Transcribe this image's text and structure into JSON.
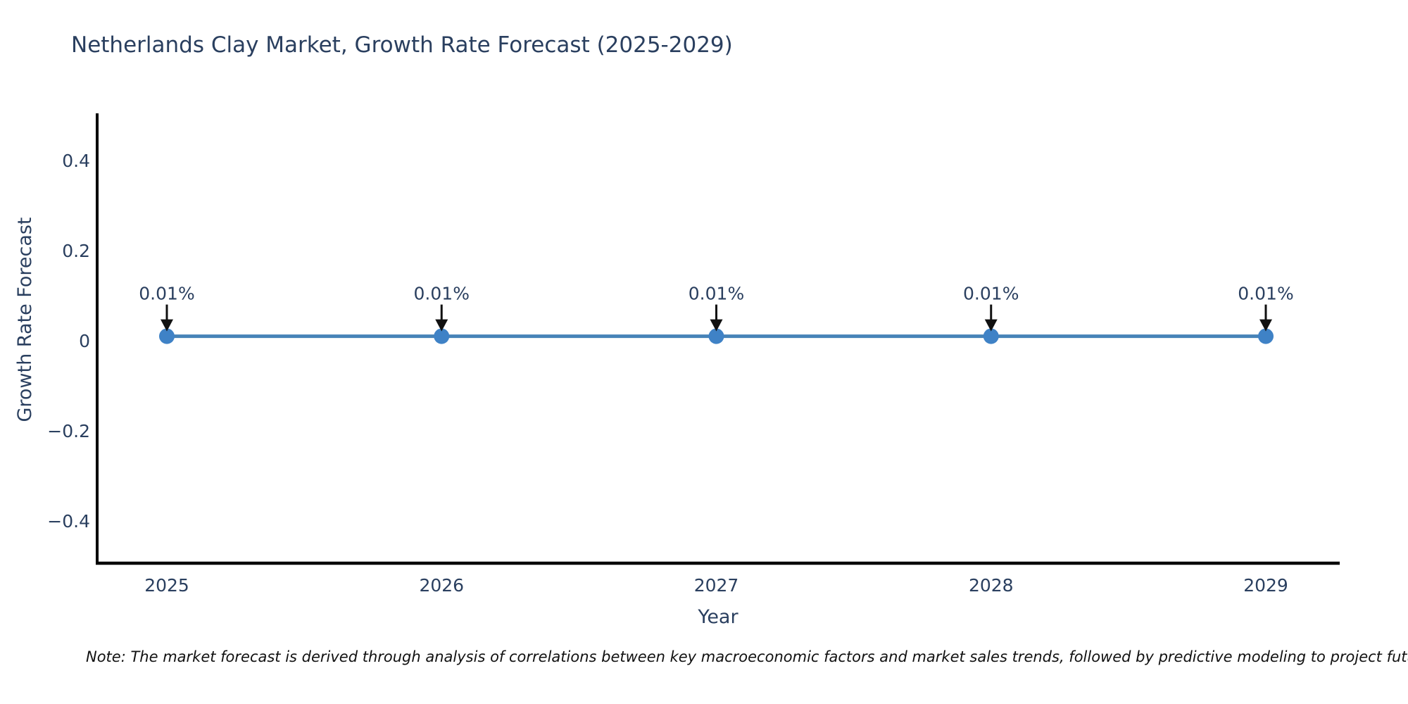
{
  "note": "Note: The market forecast is derived through analysis of correlations between key macroeconomic factors and market sales trends, followed by predictive modeling to project future sa",
  "chart_data": {
    "type": "line",
    "title": "Netherlands Clay Market, Growth Rate Forecast (2025-2029)",
    "xlabel": "Year",
    "ylabel": "Growth Rate Forecast",
    "x": [
      2025,
      2026,
      2027,
      2028,
      2029
    ],
    "series": [
      {
        "name": "Growth Rate Forecast",
        "values": [
          0.01,
          0.01,
          0.01,
          0.01,
          0.01
        ]
      }
    ],
    "point_labels": [
      "0.01%",
      "0.01%",
      "0.01%",
      "0.01%",
      "0.01%"
    ],
    "x_tick_labels": [
      "2025",
      "2026",
      "2027",
      "2028",
      "2029"
    ],
    "y_ticks": [
      0.4,
      0.2,
      0,
      -0.2,
      -0.4
    ],
    "y_tick_labels": [
      "0.4",
      "0.2",
      "0",
      "−0.2",
      "−0.4"
    ],
    "ylim": [
      -0.5,
      0.5
    ],
    "xlim": [
      2024.75,
      2029.27
    ],
    "grid": false,
    "legend": false,
    "annotation_arrows": true,
    "colors": {
      "line": "#4783b8",
      "marker": "#3f82c6",
      "axis": "#000000",
      "text": "#2a3f5f",
      "annotation_text": "#2a3f5f",
      "arrow": "#111111",
      "note_text": "#111111",
      "background": "#ffffff"
    }
  }
}
